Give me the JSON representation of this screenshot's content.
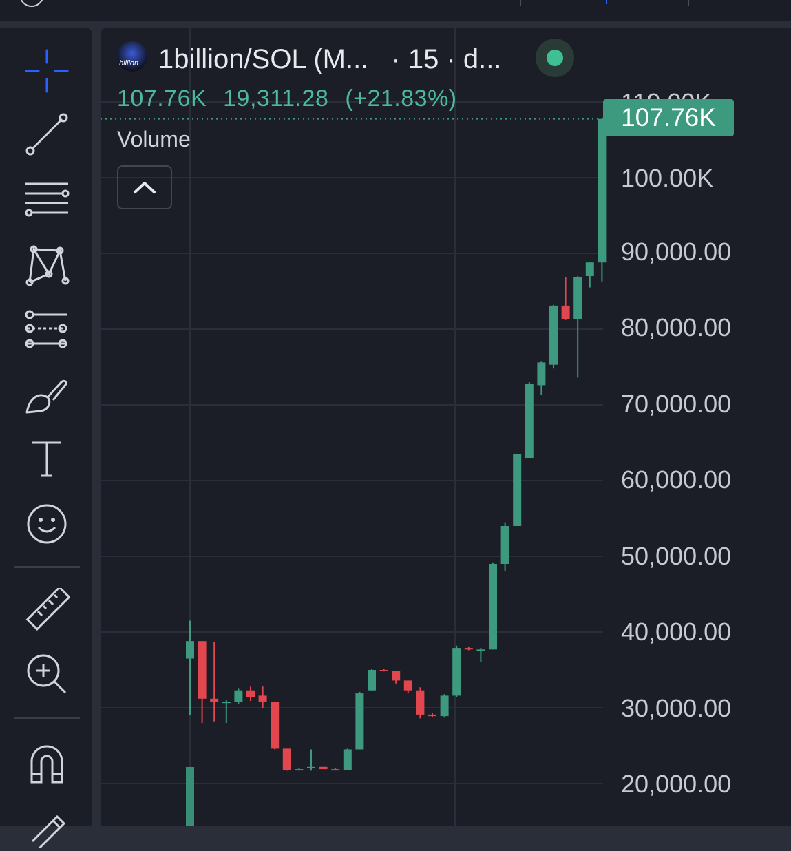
{
  "header": {
    "symbol": "1billion/SOL (M...",
    "interval": "· 15 · d...",
    "logo_text": "billion",
    "last_price": "107.76K",
    "change": "19,311.28",
    "change_pct": "(+21.83%)",
    "volume_label": "Volume"
  },
  "price_axis": {
    "labels": [
      "110.00K",
      "100.00K",
      "90,000.00",
      "80,000.00",
      "70,000.00",
      "60,000.00",
      "50,000.00",
      "40,000.00",
      "30,000.00",
      "20,000.00"
    ],
    "current_tag": "107.76K"
  },
  "toolbar": {
    "tools": [
      {
        "name": "crosshair-icon",
        "label": "Crosshair"
      },
      {
        "name": "trend-line-icon",
        "label": "Trend line"
      },
      {
        "name": "horizontal-lines-icon",
        "label": "Lines"
      },
      {
        "name": "pattern-icon",
        "label": "Patterns"
      },
      {
        "name": "fib-icon",
        "label": "Fibonacci"
      },
      {
        "name": "brush-icon",
        "label": "Brush"
      },
      {
        "name": "text-icon",
        "label": "Text"
      },
      {
        "name": "emoji-icon",
        "label": "Emoji"
      },
      {
        "name": "ruler-icon",
        "label": "Measure"
      },
      {
        "name": "zoom-in-icon",
        "label": "Zoom in"
      },
      {
        "name": "magnet-icon",
        "label": "Magnet"
      },
      {
        "name": "pencil-icon",
        "label": "Draw"
      }
    ]
  },
  "colors": {
    "up": "#3d9a7f",
    "down": "#e2464f",
    "background": "#1b1e27",
    "accent": "#2962ff"
  },
  "chart_data": {
    "type": "candlestick",
    "ylim": [
      18000,
      112000
    ],
    "y_ticks": [
      20000,
      30000,
      40000,
      50000,
      60000,
      70000,
      80000,
      90000,
      100000,
      110000
    ],
    "candles": [
      {
        "o": 36500,
        "h": 41500,
        "l": 29000,
        "c": 38800
      },
      {
        "o": 38800,
        "h": 38800,
        "l": 28000,
        "c": 31200
      },
      {
        "o": 31200,
        "h": 38700,
        "l": 28200,
        "c": 30800
      },
      {
        "o": 30800,
        "h": 31000,
        "l": 28000,
        "c": 30800
      },
      {
        "o": 30800,
        "h": 32600,
        "l": 30500,
        "c": 32300
      },
      {
        "o": 32300,
        "h": 32800,
        "l": 30900,
        "c": 31400
      },
      {
        "o": 31600,
        "h": 32800,
        "l": 30000,
        "c": 30800
      },
      {
        "o": 30800,
        "h": 30800,
        "l": 24500,
        "c": 24600
      },
      {
        "o": 24600,
        "h": 24600,
        "l": 21700,
        "c": 21800
      },
      {
        "o": 21800,
        "h": 22000,
        "l": 21800,
        "c": 21900
      },
      {
        "o": 22000,
        "h": 24500,
        "l": 21700,
        "c": 22200
      },
      {
        "o": 22200,
        "h": 22200,
        "l": 21900,
        "c": 21900
      },
      {
        "o": 21900,
        "h": 22000,
        "l": 21800,
        "c": 21800
      },
      {
        "o": 21800,
        "h": 24600,
        "l": 21800,
        "c": 24500
      },
      {
        "o": 24500,
        "h": 32100,
        "l": 24500,
        "c": 31900
      },
      {
        "o": 32300,
        "h": 35100,
        "l": 32200,
        "c": 35000
      },
      {
        "o": 35000,
        "h": 35100,
        "l": 34800,
        "c": 34900
      },
      {
        "o": 34900,
        "h": 34900,
        "l": 33200,
        "c": 33600
      },
      {
        "o": 33600,
        "h": 33600,
        "l": 32000,
        "c": 32300
      },
      {
        "o": 32300,
        "h": 32700,
        "l": 28600,
        "c": 29100
      },
      {
        "o": 29100,
        "h": 29300,
        "l": 28800,
        "c": 28900
      },
      {
        "o": 28900,
        "h": 31800,
        "l": 28700,
        "c": 31600
      },
      {
        "o": 31600,
        "h": 38200,
        "l": 31400,
        "c": 37900
      },
      {
        "o": 37900,
        "h": 38100,
        "l": 37600,
        "c": 37700
      },
      {
        "o": 37700,
        "h": 37900,
        "l": 36000,
        "c": 37700
      },
      {
        "o": 37700,
        "h": 49200,
        "l": 37700,
        "c": 49000
      },
      {
        "o": 49000,
        "h": 54500,
        "l": 48000,
        "c": 54000
      },
      {
        "o": 54000,
        "h": 63200,
        "l": 54000,
        "c": 63500
      },
      {
        "o": 63000,
        "h": 73000,
        "l": 63000,
        "c": 72800
      },
      {
        "o": 72600,
        "h": 75700,
        "l": 71300,
        "c": 75600
      },
      {
        "o": 75300,
        "h": 83200,
        "l": 74800,
        "c": 83100
      },
      {
        "o": 83100,
        "h": 86900,
        "l": 81200,
        "c": 81300
      },
      {
        "o": 81300,
        "h": 87000,
        "l": 73600,
        "c": 86900
      },
      {
        "o": 87000,
        "h": 88800,
        "l": 85500,
        "c": 88800
      },
      {
        "o": 88800,
        "h": 107760,
        "l": 86300,
        "c": 107760
      }
    ],
    "volume": [
      {
        "v": 7.5,
        "dir": "up"
      }
    ]
  }
}
